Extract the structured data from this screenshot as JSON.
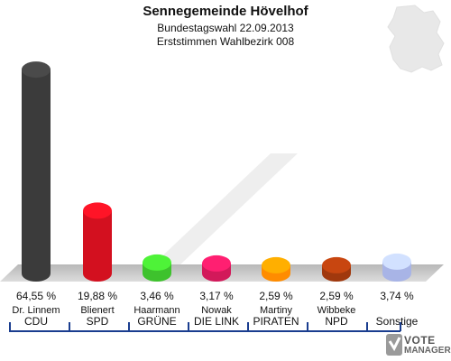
{
  "header": {
    "title": "Sennegemeinde Hövelhof",
    "subtitle": "Bundestagswahl 22.09.2013",
    "subtitle2": "Erststimmen Wahlbezirk 008"
  },
  "chart_data": {
    "type": "bar",
    "categories": [
      "CDU",
      "SPD",
      "GRÜNE",
      "DIE LINKE",
      "PIRATEN",
      "NPD",
      "Sonstige"
    ],
    "candidates": [
      "Dr. Linnem",
      "Blienert",
      "Haarmann",
      "Nowak",
      "Martiny",
      "Wibbeke",
      ""
    ],
    "values": [
      64.55,
      19.88,
      3.46,
      3.17,
      2.59,
      2.59,
      3.74
    ],
    "value_labels": [
      "64,55 %",
      "19,88 %",
      "3,46 %",
      "3,17 %",
      "2,59 %",
      "2,59 %",
      "3,74 %"
    ],
    "party_labels": [
      "CDU",
      "SPD",
      "GRÜNE",
      "DIE LINK",
      "PIRATEN",
      "NPD",
      "Sonstige"
    ],
    "colors": [
      "#3b3b3b",
      "#d3101f",
      "#3ec22d",
      "#d2195a",
      "#ff8c00",
      "#a0380d",
      "#a8b4e6"
    ],
    "ylim": [
      0,
      66
    ]
  },
  "logo": {
    "line1": "VOTE",
    "line2": "MANAGER"
  }
}
